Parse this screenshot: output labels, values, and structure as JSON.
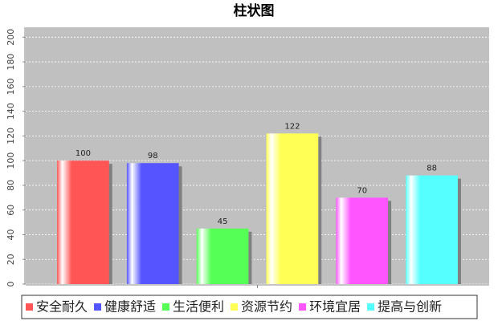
{
  "chart_data": {
    "type": "bar",
    "title": "柱状图",
    "categories": [
      null
    ],
    "series": [
      {
        "name": "安全耐久",
        "color": "#ff5555",
        "values": [
          100
        ]
      },
      {
        "name": "健康舒适",
        "color": "#5555ff",
        "values": [
          98
        ]
      },
      {
        "name": "生活便利",
        "color": "#55ff55",
        "values": [
          45
        ]
      },
      {
        "name": "资源节约",
        "color": "#ffff55",
        "values": [
          122
        ]
      },
      {
        "name": "环境宜居",
        "color": "#ff55ff",
        "values": [
          70
        ]
      },
      {
        "name": "提高与创新",
        "color": "#55ffff",
        "values": [
          88
        ]
      }
    ],
    "ylim": [
      0,
      208
    ],
    "yticks": [
      0,
      20,
      40,
      60,
      80,
      100,
      120,
      140,
      160,
      180,
      200
    ],
    "grid": true,
    "legend": "bottom"
  }
}
